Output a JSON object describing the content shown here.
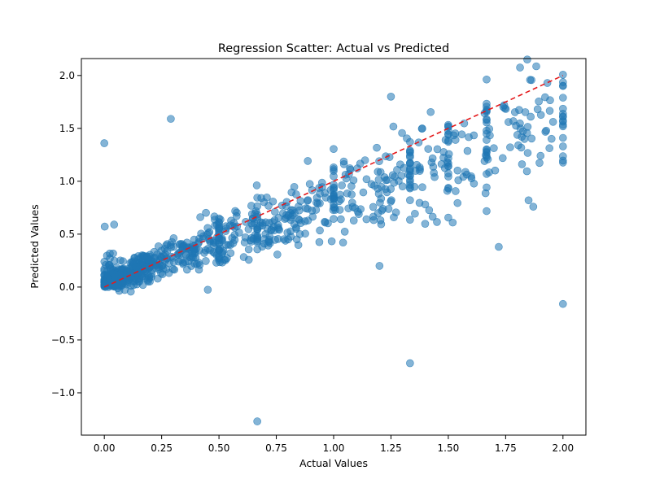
{
  "chart_data": {
    "type": "scatter",
    "title": "Regression Scatter: Actual vs Predicted",
    "xlabel": "Actual Values",
    "ylabel": "Predicted Values",
    "xlim": [
      -0.1,
      2.1
    ],
    "ylim": [
      -1.4,
      2.16
    ],
    "xticks": [
      0.0,
      0.25,
      0.5,
      0.75,
      1.0,
      1.25,
      1.5,
      1.75,
      2.0
    ],
    "xtick_labels": [
      "0.00",
      "0.25",
      "0.50",
      "0.75",
      "1.00",
      "1.25",
      "1.50",
      "1.75",
      "2.00"
    ],
    "yticks": [
      -1.0,
      -0.5,
      0.0,
      0.5,
      1.0,
      1.5,
      2.0
    ],
    "ytick_labels": [
      "−1.0",
      "−0.5",
      "0.0",
      "0.5",
      "1.0",
      "1.5",
      "2.0"
    ],
    "grid": false,
    "legend": "none",
    "point_color": "#1f77b4",
    "point_alpha": 0.55,
    "reference_line": {
      "x": [
        0,
        2
      ],
      "y": [
        0,
        2
      ],
      "color": "#e41a1c",
      "style": "dashed"
    },
    "notable_points": [
      {
        "x": 0.667,
        "y": -1.27
      },
      {
        "x": 1.333,
        "y": -0.72
      },
      {
        "x": 2.0,
        "y": -0.16
      },
      {
        "x": 1.72,
        "y": 0.38
      },
      {
        "x": 1.2,
        "y": 0.2
      },
      {
        "x": 1.85,
        "y": 0.82
      },
      {
        "x": 0.0,
        "y": 1.36
      },
      {
        "x": 0.29,
        "y": 1.59
      },
      {
        "x": 1.25,
        "y": 1.8
      },
      {
        "x": 2.0,
        "y": 1.79
      }
    ]
  }
}
